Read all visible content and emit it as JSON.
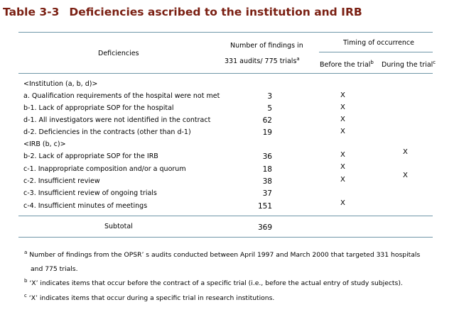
{
  "title": {
    "number": "Table 3-3",
    "text": "Deficiencies ascribed to the institution and IRB"
  },
  "header": {
    "deficiencies": "Deficiencies",
    "findings_line1": "Number of findings in",
    "findings_line2": "331 audits/ 775 trials",
    "findings_sup": "a",
    "timing": "Timing of occurrence",
    "before": "Before the trial",
    "before_sup": "b",
    "during": "During the trial",
    "during_sup": "c"
  },
  "groups": {
    "institution": "<Institution (a, b, d)>",
    "irb": "<IRB (b, c)>"
  },
  "rows": [
    {
      "label": "a. Qualification requirements of the hospital were not met",
      "count": "3",
      "before": "X",
      "during": ""
    },
    {
      "label": "b-1. Lack of appropriate SOP for the hospital",
      "count": "5",
      "before": "X",
      "during": ""
    },
    {
      "label": "d-1. All investigators were not identified in the contract",
      "count": "62",
      "before": "X",
      "during": ""
    },
    {
      "label": "d-2. Deficiencies in the contracts (other than d-1)",
      "count": "19",
      "before": "X",
      "during": ""
    },
    {
      "label": "b-2. Lack of appropriate SOP for the IRB",
      "count": "36",
      "before": "X",
      "during": "X"
    },
    {
      "label": "c-1. Inappropriate composition and/or a quorum",
      "count": "18",
      "before": "X",
      "during": ""
    },
    {
      "label": "c-2. Insufficient review",
      "count": "38",
      "before": "X",
      "during": "X"
    },
    {
      "label": "c-3. Insufficient review of ongoing trials",
      "count": "37",
      "before": "",
      "during": ""
    },
    {
      "label": "c-4. Insufficient minutes of meetings",
      "count": "151",
      "before": "X",
      "during": ""
    }
  ],
  "subtotal": {
    "label": "Subtotal",
    "count": "369"
  },
  "footnotes": {
    "a_mark": "a",
    "a_line1": "Number of findings from the OPSR’ s audits conducted between April 1997 and March 2000 that targeted 331 hospitals",
    "a_line2": "and 775 trials.",
    "b_mark": "b",
    "b_text": "‘X’  indicates items that occur before the contract of a specific trial (i.e., before the actual entry of study subjects).",
    "c_mark": "c",
    "c_text": "‘X’  indicates items that occur during a specific trial in research institutions."
  },
  "colors": {
    "title": "#7a1f12",
    "rules": "#6f97a8"
  }
}
